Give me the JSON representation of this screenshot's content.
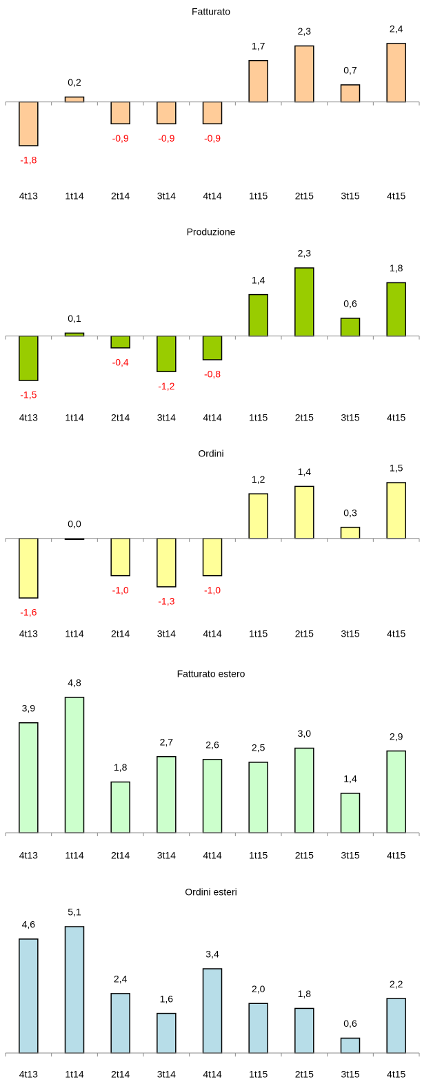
{
  "chart_data": [
    {
      "type": "bar",
      "title": "Fatturato",
      "categories": [
        "4t13",
        "1t14",
        "2t14",
        "3t14",
        "4t14",
        "1t15",
        "2t15",
        "3t15",
        "4t15"
      ],
      "values": [
        -1.8,
        0.2,
        -0.9,
        -0.9,
        -0.9,
        1.7,
        2.3,
        0.7,
        2.4
      ],
      "value_labels": [
        "-1,8",
        "0,2",
        "-0,9",
        "-0,9",
        "-0,9",
        "1,7",
        "2,3",
        "0,7",
        "2,4"
      ],
      "color": "#ffcc99",
      "label_color": "#000000",
      "negative_label_color": "#ff0000"
    },
    {
      "type": "bar",
      "title": "Produzione",
      "categories": [
        "4t13",
        "1t14",
        "2t14",
        "3t14",
        "4t14",
        "1t15",
        "2t15",
        "3t15",
        "4t15"
      ],
      "values": [
        -1.5,
        0.1,
        -0.4,
        -1.2,
        -0.8,
        1.4,
        2.3,
        0.6,
        1.8
      ],
      "value_labels": [
        "-1,5",
        "0,1",
        "-0,4",
        "-1,2",
        "-0,8",
        "1,4",
        "2,3",
        "0,6",
        "1,8"
      ],
      "color": "#99cc00",
      "label_color": "#000000",
      "negative_label_color": "#ff0000"
    },
    {
      "type": "bar",
      "title": "Ordini",
      "categories": [
        "4t13",
        "1t14",
        "2t14",
        "3t14",
        "4t14",
        "1t15",
        "2t15",
        "3t15",
        "4t15"
      ],
      "values": [
        -1.6,
        0.0,
        -1.0,
        -1.3,
        -1.0,
        1.2,
        1.4,
        0.3,
        1.5
      ],
      "value_labels": [
        "-1,6",
        "0,0",
        "-1,0",
        "-1,3",
        "-1,0",
        "1,2",
        "1,4",
        "0,3",
        "1,5"
      ],
      "color": "#ffff99",
      "label_color": "#000000",
      "negative_label_color": "#ff0000"
    },
    {
      "type": "bar",
      "title": "Fatturato estero",
      "categories": [
        "4t13",
        "1t14",
        "2t14",
        "3t14",
        "4t14",
        "1t15",
        "2t15",
        "3t15",
        "4t15"
      ],
      "values": [
        3.9,
        4.8,
        1.8,
        2.7,
        2.6,
        2.5,
        3.0,
        1.4,
        2.9
      ],
      "value_labels": [
        "3,9",
        "4,8",
        "1,8",
        "2,7",
        "2,6",
        "2,5",
        "3,0",
        "1,4",
        "2,9"
      ],
      "color": "#ccffcc",
      "label_color": "#000000",
      "negative_label_color": "#ff0000"
    },
    {
      "type": "bar",
      "title": "Ordini esteri",
      "categories": [
        "4t13",
        "1t14",
        "2t14",
        "3t14",
        "4t14",
        "1t15",
        "2t15",
        "3t15",
        "4t15"
      ],
      "values": [
        4.6,
        5.1,
        2.4,
        1.6,
        3.4,
        2.0,
        1.8,
        0.6,
        2.2
      ],
      "value_labels": [
        "4,6",
        "5,1",
        "2,4",
        "1,6",
        "3,4",
        "2,0",
        "1,8",
        "0,6",
        "2,2"
      ],
      "color": "#b7dde8",
      "label_color": "#000000",
      "negative_label_color": "#ff0000"
    }
  ]
}
